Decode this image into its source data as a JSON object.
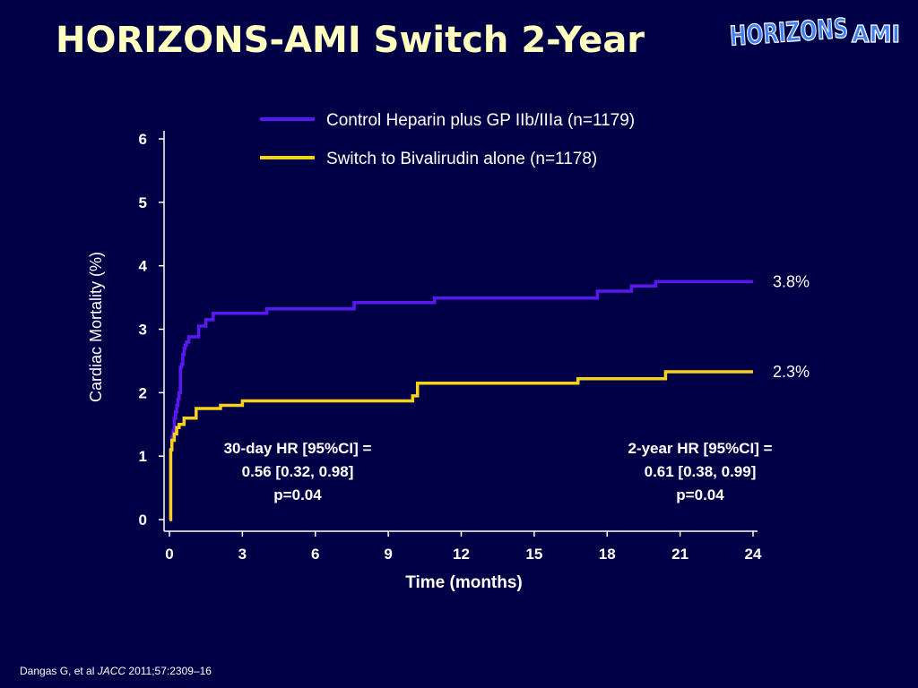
{
  "slide": {
    "title": "HORIZONS-AMI Switch 2-Year",
    "logo_text": {
      "main": "HORIZONS",
      "suffix": "AMI"
    },
    "citation": {
      "authors": "Dangas G, et al",
      "journal": "JACC",
      "ref": "2011;57:2309–16"
    }
  },
  "colors": {
    "background": "#000046",
    "title": "#ffffc0",
    "logo": "#3f7ff2",
    "control_series": "#5b17f0",
    "switch_series": "#f6d21e",
    "axis": "#ffffff",
    "text": "#ffffff"
  },
  "chart_data": {
    "type": "line",
    "step": true,
    "xlabel": "Time (months)",
    "ylabel": "Cardiac Mortality (%)",
    "xlim": [
      0,
      24
    ],
    "ylim": [
      0,
      6
    ],
    "xticks": [
      0,
      3,
      6,
      9,
      12,
      15,
      18,
      21,
      24
    ],
    "yticks": [
      0,
      1,
      2,
      3,
      4,
      5,
      6
    ],
    "grid": false,
    "legend_position": "top-right",
    "series": [
      {
        "name": "Control Heparin plus GP IIb/IIIa (n=1179)",
        "color": "#5b17f0",
        "end_label": "3.8%",
        "x": [
          0,
          0.05,
          0.1,
          0.15,
          0.2,
          0.25,
          0.3,
          0.35,
          0.4,
          0.45,
          0.5,
          0.55,
          0.6,
          0.65,
          0.7,
          0.8,
          0.9,
          1.2,
          1.5,
          1.8,
          4.0,
          7.6,
          10.9,
          17.6,
          19.0,
          20.0,
          24.0
        ],
        "y": [
          0,
          1.1,
          1.3,
          1.4,
          1.6,
          1.7,
          1.8,
          1.9,
          2.0,
          2.4,
          2.45,
          2.6,
          2.7,
          2.75,
          2.8,
          2.88,
          2.88,
          3.05,
          3.15,
          3.25,
          3.32,
          3.42,
          3.49,
          3.6,
          3.68,
          3.75,
          3.75
        ]
      },
      {
        "name": "Switch to Bivalirudin alone (n=1178)",
        "color": "#f6d21e",
        "end_label": "2.3%",
        "x": [
          0,
          0.05,
          0.1,
          0.2,
          0.3,
          0.4,
          0.6,
          0.9,
          1.1,
          2.1,
          3.0,
          10.0,
          10.2,
          16.8,
          20.4,
          24.0
        ],
        "y": [
          0,
          1.1,
          1.25,
          1.35,
          1.45,
          1.5,
          1.6,
          1.6,
          1.75,
          1.8,
          1.87,
          1.95,
          2.15,
          2.22,
          2.33,
          2.33
        ]
      }
    ],
    "annotations": [
      {
        "lines": [
          "30-day HR [95%CI] =",
          "0.56 [0.32, 0.98]",
          "p=0.04"
        ]
      },
      {
        "lines": [
          "2-year HR [95%CI] =",
          "0.61 [0.38, 0.99]",
          "p=0.04"
        ]
      }
    ]
  }
}
